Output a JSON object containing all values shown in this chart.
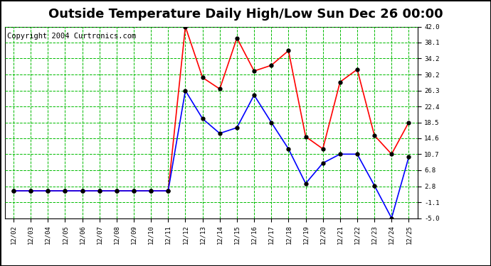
{
  "title": "Outside Temperature Daily High/Low Sun Dec 26 00:00",
  "copyright": "Copyright 2004 Curtronics.com",
  "x_labels": [
    "12/02",
    "12/03",
    "12/04",
    "12/05",
    "12/06",
    "12/07",
    "12/08",
    "12/09",
    "12/10",
    "12/11",
    "12/12",
    "12/13",
    "12/14",
    "12/15",
    "12/16",
    "12/17",
    "12/18",
    "12/19",
    "12/20",
    "12/21",
    "12/22",
    "12/23",
    "12/24",
    "12/25"
  ],
  "high_values": [
    1.7,
    1.7,
    1.7,
    1.7,
    1.7,
    1.7,
    1.7,
    1.7,
    1.7,
    1.7,
    42.0,
    29.5,
    26.7,
    39.2,
    31.1,
    32.5,
    36.1,
    15.0,
    12.0,
    28.4,
    31.5,
    15.3,
    10.7,
    18.5
  ],
  "low_values": [
    1.7,
    1.7,
    1.7,
    1.7,
    1.7,
    1.7,
    1.7,
    1.7,
    1.7,
    1.7,
    26.3,
    19.4,
    15.8,
    17.2,
    25.2,
    18.5,
    12.0,
    3.5,
    8.5,
    10.7,
    10.7,
    3.0,
    -5.0,
    10.0
  ],
  "y_ticks": [
    -5.0,
    -1.1,
    2.8,
    6.8,
    10.7,
    14.6,
    18.5,
    22.4,
    26.3,
    30.2,
    34.2,
    38.1,
    42.0
  ],
  "y_min": -5.0,
  "y_max": 42.0,
  "high_color": "#ff0000",
  "low_color": "#0000ff",
  "marker_color": "#000000",
  "grid_color": "#00bb00",
  "bg_color": "#ffffff",
  "title_fontsize": 13,
  "copyright_fontsize": 7.5
}
